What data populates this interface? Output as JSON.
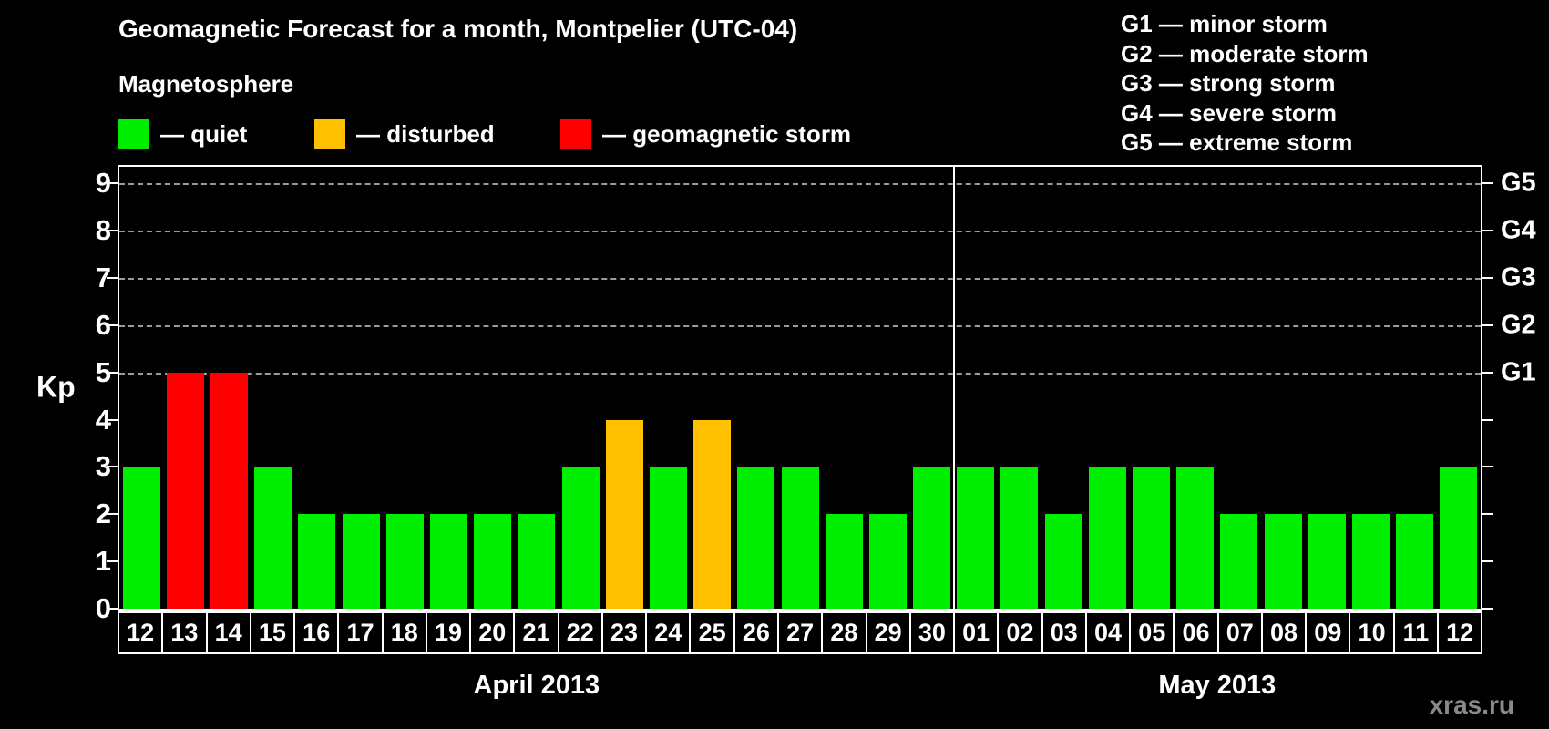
{
  "title": "Geomagnetic Forecast for a month, Montpelier (UTC-04)",
  "subtitle": "Magnetosphere",
  "legend": {
    "items": [
      {
        "status": "quiet",
        "label": "— quiet",
        "color": "#00ee00"
      },
      {
        "status": "disturbed",
        "label": "— disturbed",
        "color": "#ffc000"
      },
      {
        "status": "storm",
        "label": "— geomagnetic storm",
        "color": "#ff0000"
      }
    ]
  },
  "g_scale_legend": [
    "G1 — minor storm",
    "G2 — moderate storm",
    "G3 — strong storm",
    "G4 — severe storm",
    "G5 — extreme storm"
  ],
  "axes": {
    "y_left_label": "Kp",
    "y_ticks": [
      0,
      1,
      2,
      3,
      4,
      5,
      6,
      7,
      8,
      9
    ],
    "gridlines_at": [
      5,
      6,
      7,
      8,
      9
    ],
    "g_labels": [
      {
        "kp": 5,
        "label": "G1"
      },
      {
        "kp": 6,
        "label": "G2"
      },
      {
        "kp": 7,
        "label": "G3"
      },
      {
        "kp": 8,
        "label": "G4"
      },
      {
        "kp": 9,
        "label": "G5"
      }
    ]
  },
  "watermark": "xras.ru",
  "chart_data": {
    "type": "bar",
    "title": "Geomagnetic Forecast for a month, Montpelier (UTC-04)",
    "ylabel": "Kp",
    "ylim": [
      0,
      9.35
    ],
    "grid": "dashed horizontal at Kp 5-9",
    "legend_position": "top-left",
    "months": [
      {
        "label": "April 2013",
        "days": 19
      },
      {
        "label": "May 2013",
        "days": 12
      }
    ],
    "categories": [
      "12",
      "13",
      "14",
      "15",
      "16",
      "17",
      "18",
      "19",
      "20",
      "21",
      "22",
      "23",
      "24",
      "25",
      "26",
      "27",
      "28",
      "29",
      "30",
      "01",
      "02",
      "03",
      "04",
      "05",
      "06",
      "07",
      "08",
      "09",
      "10",
      "11",
      "12"
    ],
    "values": [
      3,
      5,
      5,
      3,
      2,
      2,
      2,
      2,
      2,
      2,
      3,
      4,
      3,
      4,
      3,
      3,
      2,
      2,
      3,
      3,
      3,
      2,
      3,
      3,
      3,
      2,
      2,
      2,
      2,
      2,
      3
    ],
    "statuses": [
      "quiet",
      "storm",
      "storm",
      "quiet",
      "quiet",
      "quiet",
      "quiet",
      "quiet",
      "quiet",
      "quiet",
      "quiet",
      "disturbed",
      "quiet",
      "disturbed",
      "quiet",
      "quiet",
      "quiet",
      "quiet",
      "quiet",
      "quiet",
      "quiet",
      "quiet",
      "quiet",
      "quiet",
      "quiet",
      "quiet",
      "quiet",
      "quiet",
      "quiet",
      "quiet",
      "quiet"
    ],
    "colors": {
      "quiet": "#00ee00",
      "disturbed": "#ffc000",
      "storm": "#ff0000"
    }
  }
}
